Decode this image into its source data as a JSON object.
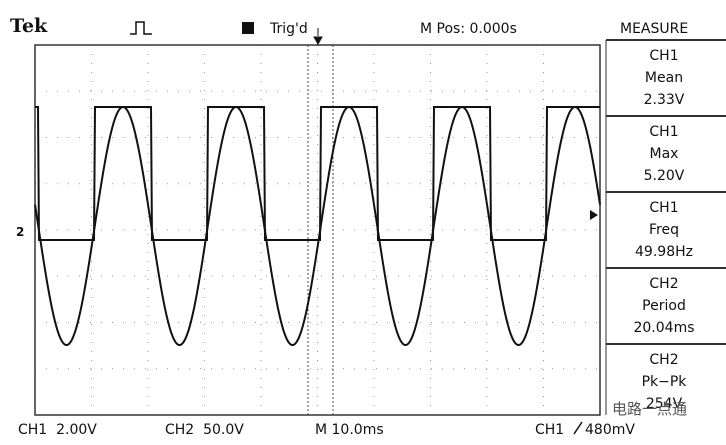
{
  "header": {
    "brand": "Tek",
    "status": "Trig'd",
    "position": "M Pos: 0.000s"
  },
  "measure": {
    "title": "MEASURE",
    "items": [
      {
        "channel": "CH1",
        "label": "Mean",
        "value": "2.33V"
      },
      {
        "channel": "CH1",
        "label": "Max",
        "value": "5.20V"
      },
      {
        "channel": "CH1",
        "label": "Freq",
        "value": "49.98Hz"
      },
      {
        "channel": "CH2",
        "label": "Period",
        "value": "20.04ms"
      },
      {
        "channel": "CH2",
        "label": "Pk−Pk",
        "value": "254V"
      }
    ]
  },
  "marker": "2",
  "footer": {
    "ch1": "CH1  2.00V",
    "ch2": "CH2  50.0V",
    "time": "M 10.0ms",
    "trigger_source": "CH1",
    "trigger_level": "480mV"
  },
  "watermark": "电路一点通"
}
